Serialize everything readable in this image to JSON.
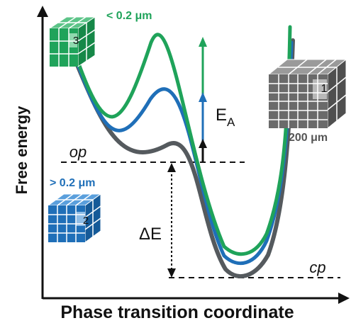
{
  "axes": {
    "ylabel": "Free energy",
    "xlabel": "Phase transition coordinate"
  },
  "states": {
    "op": "op",
    "cp": "cp"
  },
  "arrows": {
    "activation": "E",
    "activation_sub": "A",
    "delta": "ΔE"
  },
  "cubes": {
    "green": {
      "label": "< 0.2 μm",
      "number": "3",
      "color": "#1fa35a"
    },
    "blue": {
      "label": "> 0.2 μm",
      "number": "2",
      "color": "#1f6fb8"
    },
    "gray": {
      "label": "200 μm",
      "number": "1",
      "color": "#666666"
    }
  },
  "curves": [
    {
      "name": "",
      "color": "#1fa35a"
    },
    {
      "name": "",
      "color": "#1f6fb8"
    },
    {
      "name": "",
      "color": "#555a5e"
    }
  ]
}
